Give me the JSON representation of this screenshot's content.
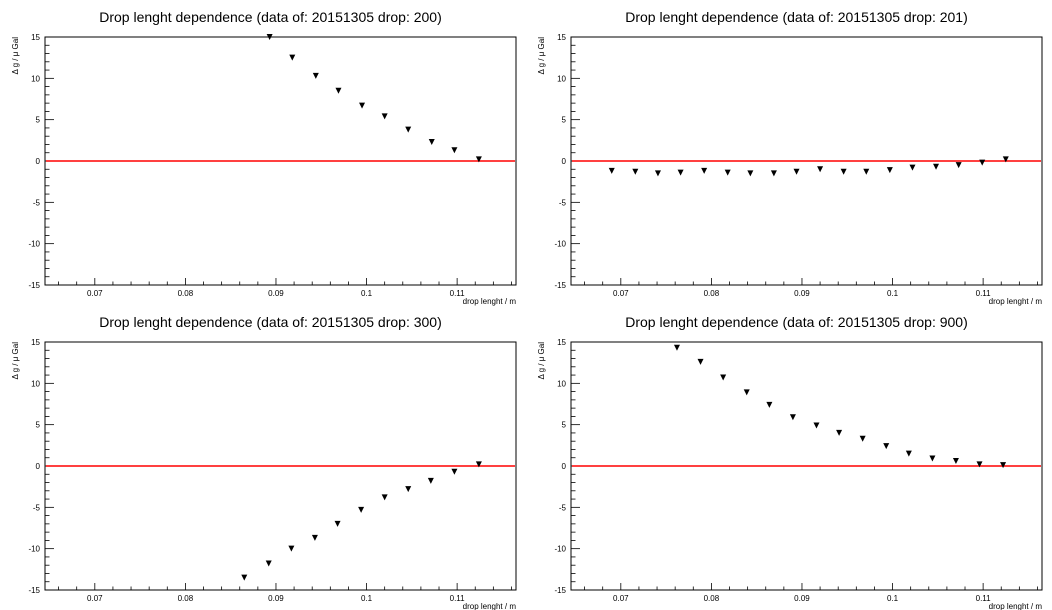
{
  "chart_data": [
    {
      "type": "scatter",
      "title": "Drop lenght dependence (data of: 20151305 drop: 200)",
      "xlabel": "drop lenght / m",
      "ylabel": "Δ g / μ Gal",
      "xlim": [
        0.0645,
        0.1165
      ],
      "ylim": [
        -15,
        15
      ],
      "xticks": [
        "0.07",
        "0.08",
        "0.09",
        "0.1",
        "0.11"
      ],
      "yticks": [
        "15",
        "10",
        "5",
        "0",
        "-5",
        "-10",
        "-15"
      ],
      "reference_line": {
        "y": 0,
        "color": "#ff0000"
      },
      "marker": "triangle-down",
      "x": [
        0.0893,
        0.0918,
        0.0944,
        0.0969,
        0.0995,
        0.102,
        0.1046,
        0.1072,
        0.1097,
        0.1124
      ],
      "y": [
        15.0,
        12.5,
        10.3,
        8.5,
        6.7,
        5.4,
        3.8,
        2.3,
        1.3,
        0.2
      ]
    },
    {
      "type": "scatter",
      "title": "Drop lenght dependence (data of: 20151305 drop: 201)",
      "xlabel": "drop lenght / m",
      "ylabel": "Δ g / μ Gal",
      "xlim": [
        0.0645,
        0.1165
      ],
      "ylim": [
        -15,
        15
      ],
      "xticks": [
        "0.07",
        "0.08",
        "0.09",
        "0.1",
        "0.11"
      ],
      "yticks": [
        "15",
        "10",
        "5",
        "0",
        "-5",
        "-10",
        "-15"
      ],
      "reference_line": {
        "y": 0,
        "color": "#ff0000"
      },
      "marker": "triangle-down",
      "x": [
        0.069,
        0.0716,
        0.0741,
        0.0766,
        0.0792,
        0.0818,
        0.0843,
        0.0869,
        0.0894,
        0.092,
        0.0946,
        0.0971,
        0.0997,
        0.1022,
        0.1048,
        0.1073,
        0.1099,
        0.1125
      ],
      "y": [
        -1.2,
        -1.3,
        -1.5,
        -1.4,
        -1.2,
        -1.4,
        -1.5,
        -1.5,
        -1.3,
        -1.0,
        -1.3,
        -1.3,
        -1.1,
        -0.8,
        -0.7,
        -0.5,
        -0.2,
        0.2
      ]
    },
    {
      "type": "scatter",
      "title": "Drop lenght dependence (data of: 20151305 drop: 300)",
      "xlabel": "drop lenght / m",
      "ylabel": "Δ g / μ Gal",
      "xlim": [
        0.0645,
        0.1165
      ],
      "ylim": [
        -15,
        15
      ],
      "xticks": [
        "0.07",
        "0.08",
        "0.09",
        "0.1",
        "0.11"
      ],
      "yticks": [
        "15",
        "10",
        "5",
        "0",
        "-5",
        "-10",
        "-15"
      ],
      "reference_line": {
        "y": 0,
        "color": "#ff0000"
      },
      "marker": "triangle-down",
      "x": [
        0.0865,
        0.0892,
        0.0917,
        0.0943,
        0.0968,
        0.0994,
        0.102,
        0.1046,
        0.1071,
        0.1097,
        0.1124
      ],
      "y": [
        -13.5,
        -11.8,
        -10.0,
        -8.7,
        -7.0,
        -5.3,
        -3.8,
        -2.8,
        -1.8,
        -0.7,
        0.2
      ]
    },
    {
      "type": "scatter",
      "title": "Drop lenght dependence (data of: 20151305 drop: 900)",
      "xlabel": "drop lenght / m",
      "ylabel": "Δ g / μ Gal",
      "xlim": [
        0.0645,
        0.1165
      ],
      "ylim": [
        -15,
        15
      ],
      "xticks": [
        "0.07",
        "0.08",
        "0.09",
        "0.1",
        "0.11"
      ],
      "yticks": [
        "15",
        "10",
        "5",
        "0",
        "-5",
        "-10",
        "-15"
      ],
      "reference_line": {
        "y": 0,
        "color": "#ff0000"
      },
      "marker": "triangle-down",
      "x": [
        0.0762,
        0.0788,
        0.0813,
        0.0839,
        0.0864,
        0.089,
        0.0916,
        0.0941,
        0.0967,
        0.0993,
        0.1018,
        0.1044,
        0.107,
        0.1096,
        0.1122
      ],
      "y": [
        14.3,
        12.6,
        10.7,
        8.9,
        7.4,
        5.9,
        4.9,
        4.0,
        3.3,
        2.4,
        1.5,
        0.9,
        0.6,
        0.2,
        0.1
      ]
    }
  ]
}
